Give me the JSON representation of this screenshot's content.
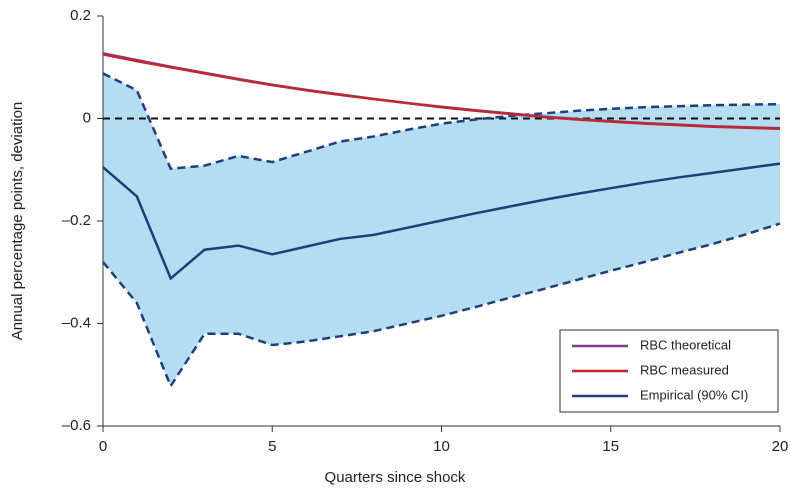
{
  "chart_data": {
    "type": "line",
    "x_label": "Quarters since shock",
    "y_label": "Annual percentage points, deviation",
    "x": [
      0,
      1,
      2,
      3,
      4,
      5,
      6,
      7,
      8,
      9,
      10,
      11,
      12,
      13,
      14,
      15,
      16,
      17,
      18,
      19,
      20
    ],
    "xlim": [
      0,
      20
    ],
    "xticks": [
      0,
      5,
      10,
      15,
      20
    ],
    "ylim": [
      -0.6,
      0.2
    ],
    "yticks": [
      {
        "value": -0.6,
        "label": "–0.6"
      },
      {
        "value": -0.4,
        "label": "–0.4"
      },
      {
        "value": -0.2,
        "label": "–0.2"
      },
      0,
      0.2
    ],
    "legend": "lower right",
    "series": [
      {
        "name": "RBC theoretical",
        "color": "#7b3f8c",
        "values": [
          0.127,
          0.114,
          0.101,
          0.089,
          0.077,
          0.066,
          0.056,
          0.047,
          0.038,
          0.03,
          0.023,
          0.016,
          0.01,
          0.004,
          -0.001,
          -0.005,
          -0.009,
          -0.012,
          -0.015,
          -0.017,
          -0.019
        ]
      },
      {
        "name": "RBC measured",
        "color": "#c0282d",
        "values": [
          0.125,
          0.112,
          0.1,
          0.088,
          0.076,
          0.065,
          0.055,
          0.046,
          0.038,
          0.03,
          0.022,
          0.015,
          0.009,
          0.003,
          -0.002,
          -0.006,
          -0.01,
          -0.013,
          -0.016,
          -0.018,
          -0.02
        ]
      },
      {
        "name": "Empirical (90% CI)",
        "color": "#1d3f7a",
        "band_color": "#b5ddf1",
        "values": [
          -0.095,
          -0.152,
          -0.312,
          -0.256,
          -0.248,
          -0.265,
          -0.25,
          -0.235,
          -0.227,
          -0.213,
          -0.199,
          -0.185,
          -0.172,
          -0.159,
          -0.147,
          -0.136,
          -0.125,
          -0.115,
          -0.106,
          -0.097,
          -0.088
        ],
        "upper": [
          0.088,
          0.055,
          -0.098,
          -0.092,
          -0.073,
          -0.085,
          -0.065,
          -0.045,
          -0.035,
          -0.022,
          -0.01,
          -0.002,
          0.005,
          0.01,
          0.015,
          0.019,
          0.022,
          0.024,
          0.026,
          0.027,
          0.028
        ],
        "lower": [
          -0.28,
          -0.36,
          -0.522,
          -0.42,
          -0.42,
          -0.442,
          -0.435,
          -0.425,
          -0.415,
          -0.4,
          -0.385,
          -0.368,
          -0.35,
          -0.333,
          -0.315,
          -0.297,
          -0.28,
          -0.262,
          -0.245,
          -0.226,
          -0.205
        ]
      }
    ]
  }
}
